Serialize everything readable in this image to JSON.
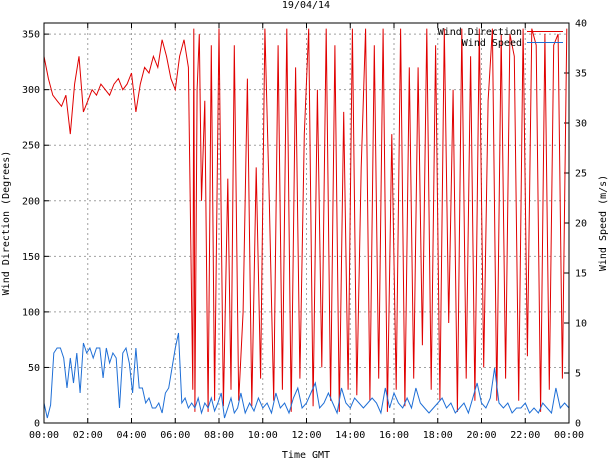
{
  "chart_data": {
    "type": "line",
    "title": "19/04/14",
    "xlabel": "Time GMT",
    "ylabel_left": "Wind Direction (Degrees)",
    "ylabel_right": "Wind Speed (m/s)",
    "x_range_hours": [
      0,
      24
    ],
    "x_ticks": [
      "00:00",
      "02:00",
      "04:00",
      "06:00",
      "08:00",
      "10:00",
      "12:00",
      "14:00",
      "16:00",
      "18:00",
      "20:00",
      "22:00",
      "00:00"
    ],
    "y_left_range": [
      0,
      360
    ],
    "y_left_ticks": [
      0,
      50,
      100,
      150,
      200,
      250,
      300,
      350
    ],
    "y_right_range": [
      0,
      40
    ],
    "y_right_ticks": [
      0,
      5,
      10,
      15,
      20,
      25,
      30,
      35,
      40
    ],
    "grid": true,
    "legend_position": "top-right",
    "series": [
      {
        "name": "Wind Direction",
        "axis": "left",
        "color": "#e00000",
        "x_hours": [
          0.0,
          0.2,
          0.4,
          0.6,
          0.8,
          1.0,
          1.2,
          1.4,
          1.6,
          1.8,
          2.0,
          2.2,
          2.4,
          2.6,
          2.8,
          3.0,
          3.2,
          3.4,
          3.6,
          3.8,
          4.0,
          4.2,
          4.4,
          4.6,
          4.8,
          5.0,
          5.2,
          5.4,
          5.6,
          5.8,
          6.0,
          6.2,
          6.4,
          6.6,
          6.8,
          6.85,
          6.9,
          7.0,
          7.1,
          7.2,
          7.35,
          7.5,
          7.65,
          7.8,
          8.0,
          8.2,
          8.4,
          8.55,
          8.7,
          8.9,
          9.1,
          9.3,
          9.5,
          9.7,
          9.9,
          10.1,
          10.3,
          10.5,
          10.7,
          10.9,
          11.1,
          11.3,
          11.5,
          11.7,
          11.9,
          12.1,
          12.3,
          12.5,
          12.7,
          12.9,
          13.1,
          13.3,
          13.5,
          13.7,
          13.9,
          14.1,
          14.3,
          14.5,
          14.7,
          14.9,
          15.1,
          15.3,
          15.5,
          15.7,
          15.9,
          16.1,
          16.3,
          16.5,
          16.7,
          16.9,
          17.1,
          17.3,
          17.5,
          17.7,
          17.9,
          18.1,
          18.3,
          18.5,
          18.7,
          18.9,
          19.1,
          19.3,
          19.5,
          19.7,
          19.9,
          20.1,
          20.3,
          20.5,
          20.7,
          20.9,
          21.1,
          21.3,
          21.5,
          21.7,
          21.9,
          22.1,
          22.3,
          22.5,
          22.7,
          22.9,
          23.1,
          23.3,
          23.5,
          23.7,
          23.9
        ],
        "y": [
          330,
          310,
          295,
          290,
          285,
          295,
          260,
          305,
          330,
          280,
          290,
          300,
          295,
          305,
          300,
          295,
          305,
          310,
          300,
          305,
          315,
          280,
          305,
          320,
          315,
          330,
          320,
          345,
          330,
          310,
          300,
          330,
          345,
          320,
          30,
          355,
          10,
          300,
          350,
          200,
          290,
          10,
          340,
          20,
          355,
          15,
          220,
          30,
          340,
          20,
          100,
          310,
          15,
          230,
          40,
          355,
          200,
          20,
          340,
          30,
          355,
          10,
          320,
          40,
          260,
          355,
          15,
          300,
          50,
          355,
          20,
          340,
          10,
          280,
          30,
          355,
          25,
          230,
          355,
          20,
          340,
          40,
          355,
          10,
          260,
          30,
          355,
          15,
          320,
          40,
          320,
          70,
          355,
          30,
          340,
          20,
          355,
          90,
          300,
          10,
          355,
          40,
          330,
          20,
          355,
          50,
          290,
          355,
          20,
          350,
          40,
          350,
          330,
          20,
          355,
          60,
          355,
          340,
          10,
          350,
          30,
          340,
          350,
          40,
          355
        ]
      },
      {
        "name": "Wind Speed",
        "axis": "right",
        "color": "#1f6fd6",
        "x_hours": [
          0.0,
          0.15,
          0.3,
          0.45,
          0.6,
          0.75,
          0.9,
          1.05,
          1.2,
          1.35,
          1.5,
          1.65,
          1.8,
          1.95,
          2.1,
          2.25,
          2.4,
          2.55,
          2.7,
          2.85,
          3.0,
          3.15,
          3.3,
          3.45,
          3.6,
          3.75,
          3.9,
          4.05,
          4.2,
          4.35,
          4.5,
          4.65,
          4.8,
          4.95,
          5.1,
          5.25,
          5.4,
          5.55,
          5.7,
          5.85,
          6.0,
          6.15,
          6.3,
          6.45,
          6.6,
          6.75,
          6.9,
          7.05,
          7.2,
          7.35,
          7.5,
          7.65,
          7.8,
          7.95,
          8.1,
          8.25,
          8.4,
          8.55,
          8.7,
          8.85,
          9.0,
          9.2,
          9.4,
          9.6,
          9.8,
          10.0,
          10.2,
          10.4,
          10.6,
          10.8,
          11.0,
          11.2,
          11.4,
          11.6,
          11.8,
          12.0,
          12.2,
          12.4,
          12.6,
          12.8,
          13.0,
          13.2,
          13.4,
          13.6,
          13.8,
          14.0,
          14.2,
          14.4,
          14.6,
          14.8,
          15.0,
          15.2,
          15.4,
          15.6,
          15.8,
          16.0,
          16.2,
          16.4,
          16.6,
          16.8,
          17.0,
          17.2,
          17.4,
          17.6,
          17.8,
          18.0,
          18.2,
          18.4,
          18.6,
          18.8,
          19.0,
          19.2,
          19.4,
          19.6,
          19.8,
          20.0,
          20.2,
          20.4,
          20.6,
          20.8,
          21.0,
          21.2,
          21.4,
          21.6,
          21.8,
          22.0,
          22.2,
          22.4,
          22.6,
          22.8,
          23.0,
          23.2,
          23.4,
          23.6,
          23.8,
          24.0
        ],
        "y": [
          2,
          0.5,
          1.8,
          7,
          7.5,
          7.5,
          6.5,
          3.5,
          6.5,
          4,
          7,
          3,
          8,
          7,
          7.5,
          6.5,
          7.5,
          7.5,
          4.5,
          7.5,
          6,
          7,
          6.5,
          1.5,
          7,
          7.5,
          6,
          3,
          7.5,
          3.5,
          3.5,
          2,
          2.5,
          1.5,
          1.5,
          2,
          1,
          3,
          3.5,
          5.5,
          7.5,
          9,
          2,
          2.5,
          1.5,
          2,
          1.5,
          2.5,
          1,
          2,
          1.5,
          2.5,
          1.2,
          2,
          3,
          0.5,
          1.5,
          2.5,
          1,
          1.5,
          3,
          1,
          2,
          1.2,
          2.5,
          1.5,
          2,
          1,
          3,
          1.5,
          2,
          1,
          2.5,
          3.5,
          1.5,
          2,
          3,
          4,
          1.5,
          2,
          3,
          2,
          1,
          3.5,
          2,
          1.5,
          2.5,
          2,
          1.5,
          2,
          2.5,
          2,
          1,
          3.5,
          1.5,
          3,
          2,
          1.5,
          2.5,
          1.5,
          3.5,
          2,
          1.5,
          1,
          1.5,
          2,
          2.5,
          1.5,
          2,
          1,
          1.5,
          2,
          1,
          2.5,
          4,
          2,
          1.5,
          2.5,
          5.5,
          2,
          1.5,
          2,
          1,
          1.5,
          1.5,
          2,
          1,
          1.5,
          1,
          2,
          1.5,
          1,
          3.5,
          1.5,
          2,
          1.5
        ]
      }
    ]
  }
}
